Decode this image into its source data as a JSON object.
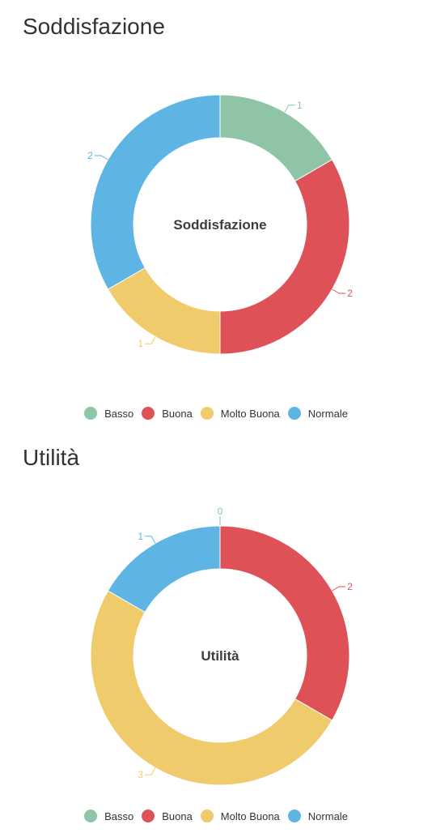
{
  "chart_data": [
    {
      "type": "pie",
      "title": "Soddisfazione",
      "center_label": "Soddisfazione",
      "categories": [
        "Basso",
        "Buona",
        "Molto Buona",
        "Normale"
      ],
      "values": [
        1,
        2,
        1,
        2
      ],
      "colors": [
        "#8fc4a6",
        "#de5257",
        "#f0cb6b",
        "#5eb5e3"
      ],
      "legend_placement": "bottom"
    },
    {
      "type": "pie",
      "title": "Utilità",
      "center_label": "Utilità",
      "categories": [
        "Basso",
        "Buona",
        "Molto Buona",
        "Normale"
      ],
      "values": [
        0,
        2,
        3,
        1
      ],
      "colors": [
        "#8fc4a6",
        "#de5257",
        "#f0cb6b",
        "#5eb5e3"
      ],
      "legend_placement": "bottom"
    }
  ]
}
